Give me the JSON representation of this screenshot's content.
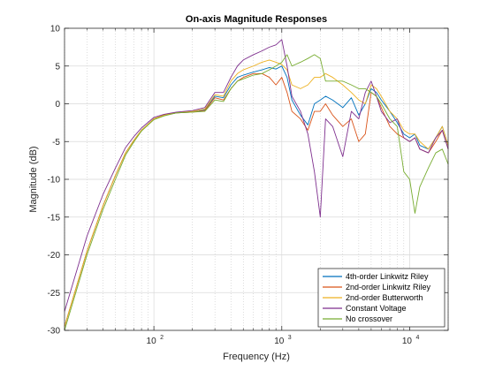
{
  "chart_data": {
    "type": "line",
    "title": "On-axis Magnitude Responses",
    "xlabel": "Frequency (Hz)",
    "ylabel": "Magnitude (dB)",
    "xscale": "log",
    "xlim": [
      20,
      20000
    ],
    "ylim": [
      -30,
      10
    ],
    "yticks": [
      10,
      5,
      0,
      -5,
      -10,
      -15,
      -20,
      -25,
      -30
    ],
    "xticks": [
      100,
      1000,
      10000
    ],
    "xtick_labels": [
      {
        "base": "10",
        "exp": "2"
      },
      {
        "base": "10",
        "exp": "3"
      },
      {
        "base": "10",
        "exp": "4"
      }
    ],
    "grid": true,
    "legend_position": "bottom-right",
    "x": [
      20,
      25,
      30,
      40,
      50,
      60,
      70,
      80,
      100,
      120,
      150,
      200,
      250,
      300,
      350,
      400,
      450,
      500,
      600,
      700,
      800,
      900,
      1000,
      1100,
      1200,
      1400,
      1600,
      1800,
      2000,
      2200,
      2500,
      3000,
      3500,
      4000,
      4500,
      5000,
      5500,
      6000,
      7000,
      8000,
      9000,
      10000,
      11000,
      12000,
      14000,
      16000,
      18000,
      20000
    ],
    "series": [
      {
        "name": "4th-order Linkwitz Riley",
        "color": "#0072BD",
        "values": [
          -29.5,
          -24,
          -19.5,
          -13.5,
          -9.5,
          -6.5,
          -4.8,
          -3.5,
          -2.0,
          -1.5,
          -1.2,
          -1.1,
          -0.8,
          1.0,
          0.8,
          2.5,
          3.5,
          3.8,
          4.2,
          4.5,
          4.8,
          4.6,
          5.0,
          3.5,
          0.5,
          -1.5,
          -2.8,
          0.0,
          0.5,
          1.0,
          0.5,
          -0.5,
          0.8,
          -1.5,
          0.0,
          2.0,
          1.5,
          0.5,
          -1.0,
          -2.5,
          -4.0,
          -4.5,
          -4.0,
          -5.5,
          -6.0,
          -4.5,
          -3.0,
          -5.5
        ]
      },
      {
        "name": "2nd-order Linkwitz Riley",
        "color": "#D95319",
        "values": [
          -29.5,
          -24,
          -19.5,
          -13.5,
          -9.5,
          -6.5,
          -4.8,
          -3.5,
          -2.0,
          -1.5,
          -1.2,
          -1.1,
          -0.9,
          0.8,
          0.5,
          2.0,
          3.0,
          3.5,
          4.0,
          4.0,
          3.5,
          2.5,
          3.5,
          1.5,
          -1.0,
          -2.0,
          -3.5,
          -1.0,
          -1.0,
          0.0,
          -1.5,
          -3.0,
          -2.0,
          -5.0,
          -4.0,
          1.5,
          1.0,
          -0.5,
          -3.0,
          -4.0,
          -4.5,
          -5.0,
          -4.5,
          -6.0,
          -6.5,
          -5.0,
          -3.5,
          -6.0
        ]
      },
      {
        "name": "2nd-order Butterworth",
        "color": "#EDB120",
        "values": [
          -29.5,
          -24,
          -19.5,
          -13.5,
          -9.5,
          -6.5,
          -4.8,
          -3.5,
          -2.0,
          -1.5,
          -1.2,
          -1.0,
          -0.7,
          1.2,
          1.0,
          3.0,
          4.0,
          4.5,
          5.0,
          5.5,
          5.8,
          5.5,
          5.2,
          4.5,
          2.5,
          2.0,
          2.5,
          3.5,
          3.5,
          4.0,
          3.5,
          2.5,
          1.5,
          0.5,
          0.0,
          2.5,
          2.0,
          1.0,
          -1.0,
          -2.0,
          -3.5,
          -4.0,
          -4.0,
          -5.0,
          -6.0,
          -4.5,
          -3.0,
          -5.5
        ]
      },
      {
        "name": "Constant Voltage",
        "color": "#7E2F8E",
        "values": [
          -27.5,
          -22,
          -17.5,
          -12,
          -8.5,
          -5.8,
          -4.3,
          -3.2,
          -1.8,
          -1.4,
          -1.1,
          -0.9,
          -0.5,
          1.5,
          1.5,
          3.5,
          5.0,
          5.8,
          6.5,
          7.0,
          7.5,
          7.8,
          8.5,
          5.0,
          1.0,
          -1.0,
          -4.0,
          -9.0,
          -15.0,
          -2.0,
          -3.0,
          -7.0,
          -1.0,
          -2.0,
          1.5,
          3.0,
          1.0,
          -1.0,
          -2.5,
          -2.0,
          -4.5,
          -5.0,
          -4.5,
          -6.0,
          -6.5,
          -4.5,
          -3.5,
          -6.0
        ]
      },
      {
        "name": "No crossover",
        "color": "#77AC30",
        "values": [
          -30.0,
          -24.5,
          -20.0,
          -14.0,
          -10.0,
          -6.8,
          -5.0,
          -3.6,
          -2.1,
          -1.6,
          -1.2,
          -1.1,
          -1.0,
          0.5,
          0.3,
          2.0,
          3.0,
          3.3,
          3.8,
          4.0,
          4.5,
          5.0,
          5.5,
          6.5,
          5.0,
          5.5,
          6.0,
          6.5,
          6.0,
          3.0,
          3.0,
          3.0,
          2.5,
          2.0,
          2.0,
          1.5,
          1.0,
          0.0,
          -2.0,
          -3.0,
          -9.0,
          -10.0,
          -14.5,
          -11.0,
          -8.5,
          -6.5,
          -6.0,
          -8.0
        ]
      }
    ]
  }
}
